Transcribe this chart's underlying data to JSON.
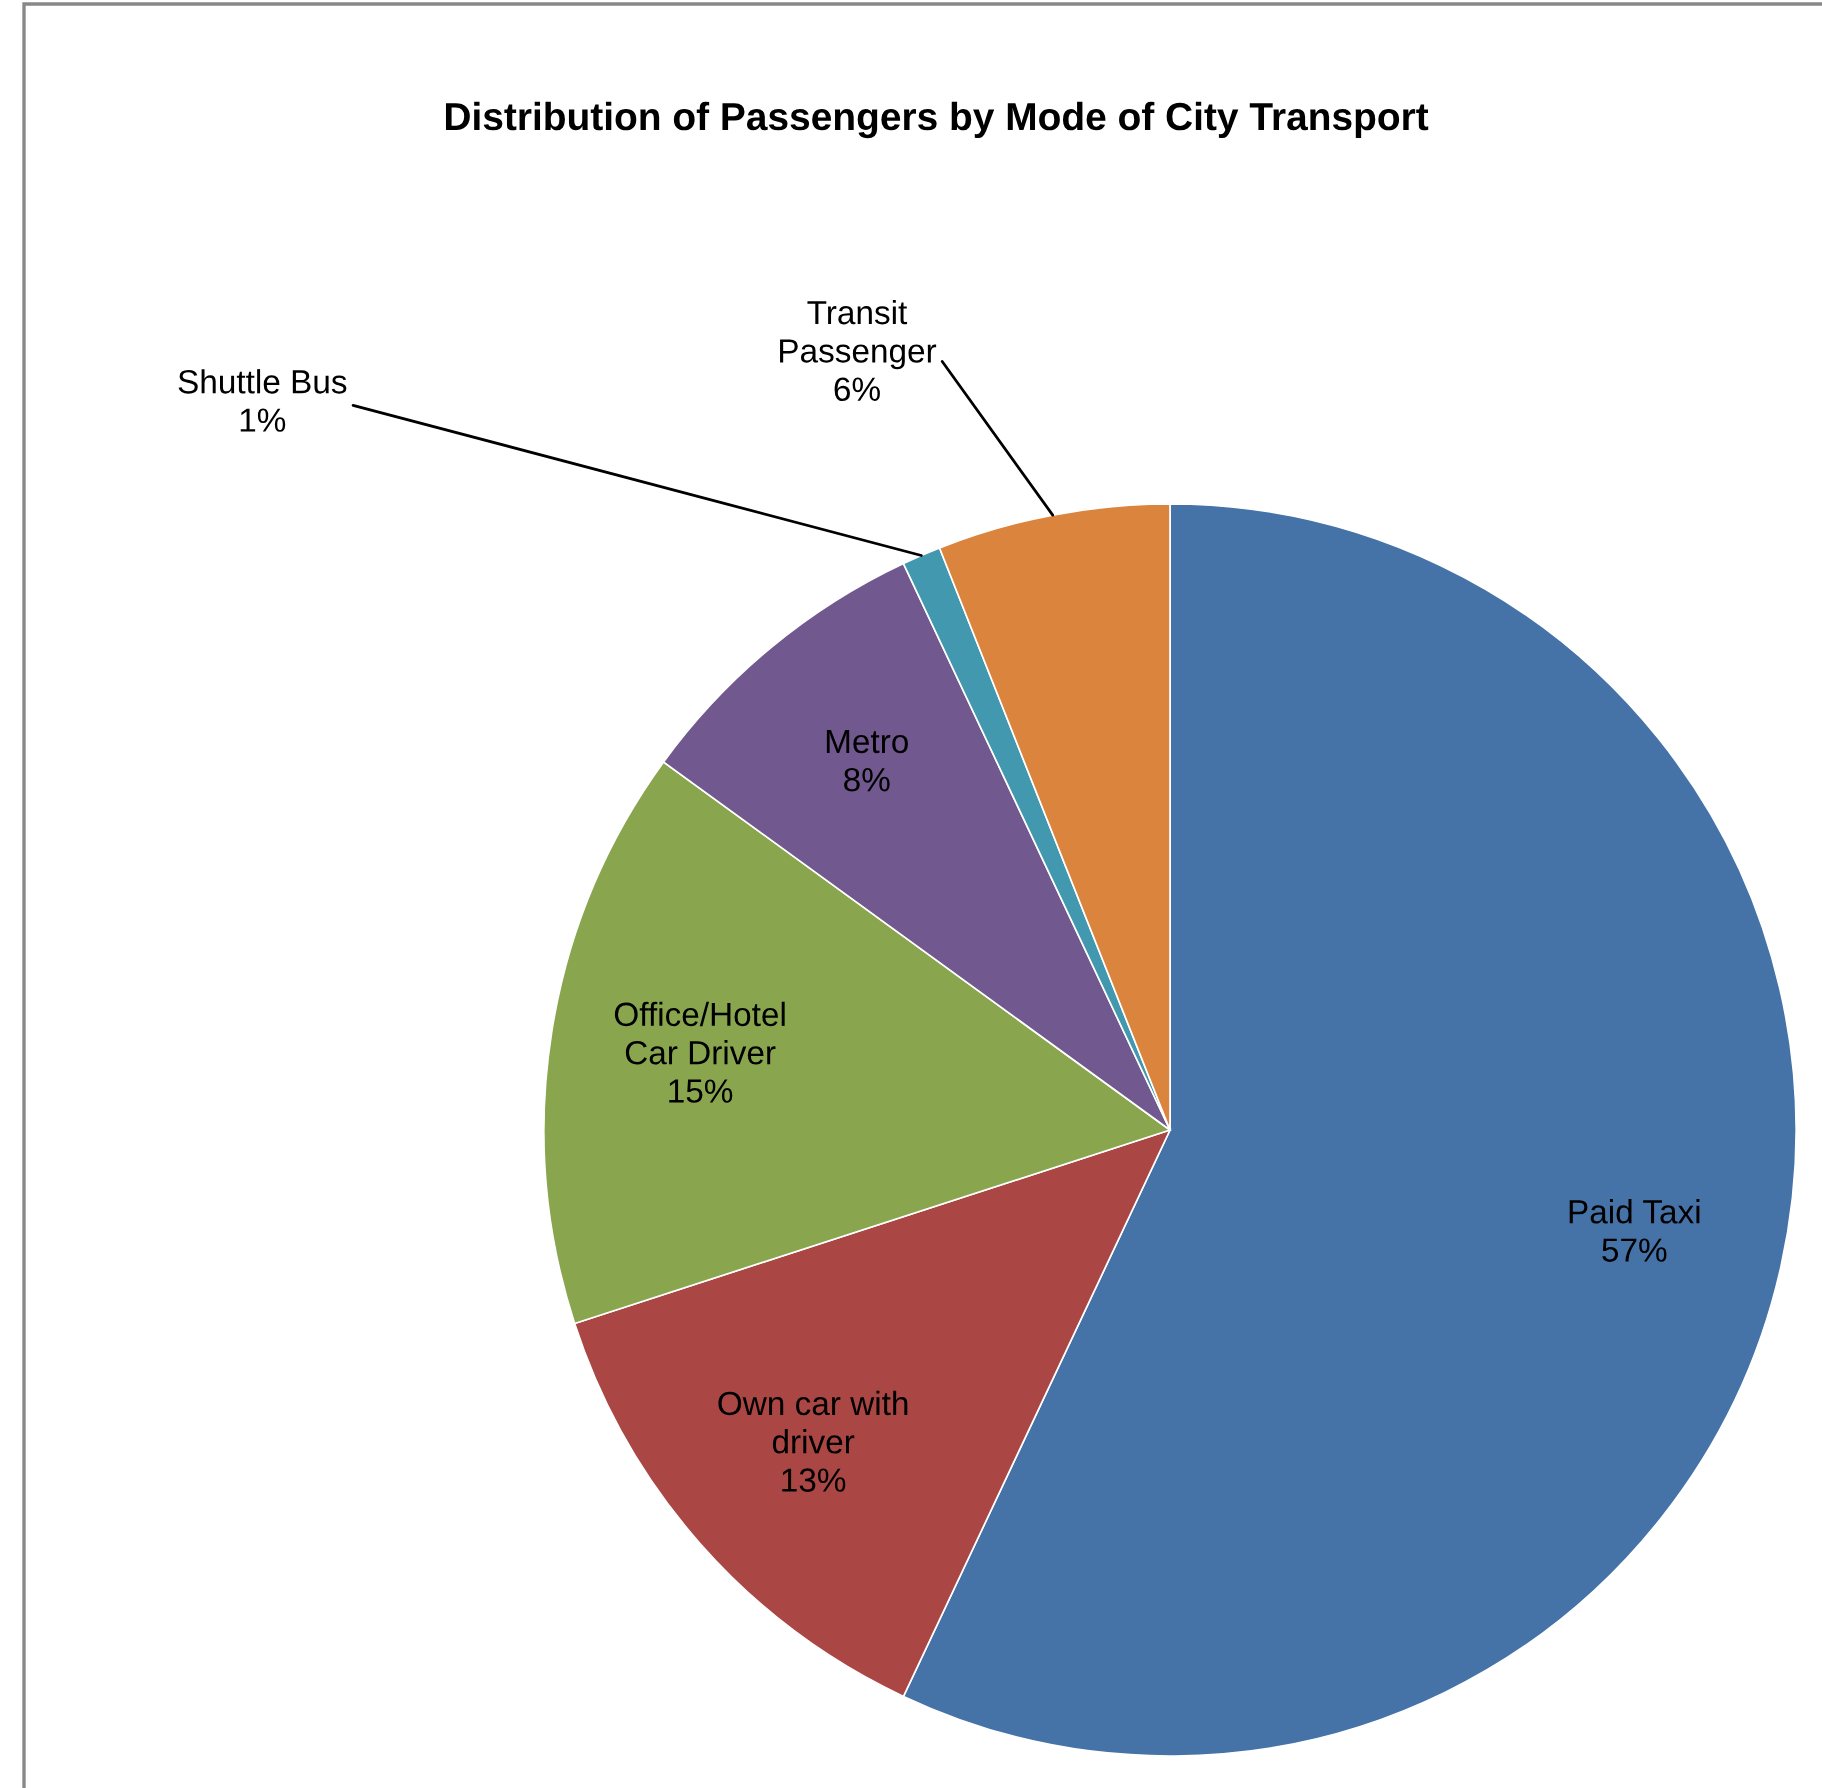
{
  "chart_data": {
    "type": "pie",
    "title": "Distribution of Passengers by Mode of City Transport",
    "categories": [
      "Paid Taxi",
      "Own car with\ndriver",
      "Office/Hotel\nCar Driver",
      "Metro",
      "Shuttle Bus",
      "Transit\nPassenger"
    ],
    "values": [
      57,
      13,
      15,
      8,
      1,
      6
    ],
    "colors": [
      "#4572a7",
      "#aa4643",
      "#89a54e",
      "#71588f",
      "#4198af",
      "#db843d"
    ],
    "value_labels": [
      "57%",
      "13%",
      "15%",
      "8%",
      "1%",
      "6%"
    ]
  }
}
